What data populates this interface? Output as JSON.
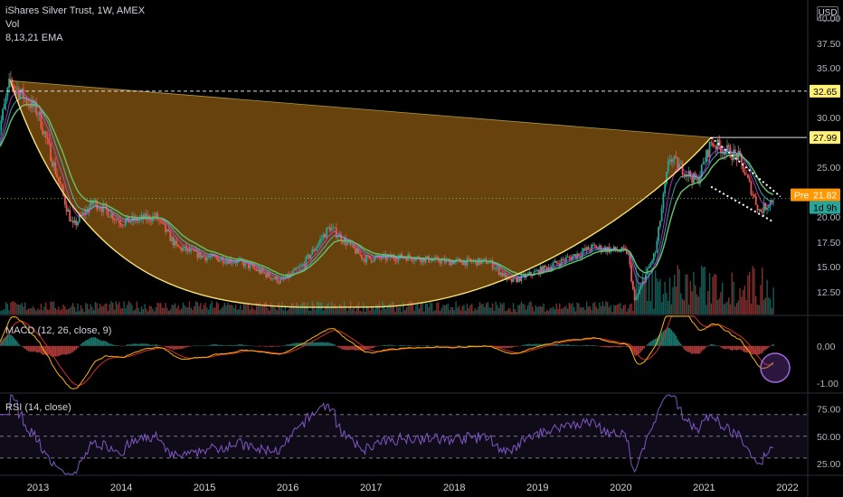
{
  "header": {
    "title": "iShares Silver Trust, 1W, AMEX",
    "vol": "Vol",
    "ema": "8,13,21 EMA",
    "currency": "USD"
  },
  "macd": {
    "label": "MACD (12, 26, close, 9)"
  },
  "rsi": {
    "label": "RSI (14, close)"
  },
  "colors": {
    "background": "#000000",
    "candle_up": "#26a69a",
    "candle_down": "#ef5350",
    "ema8": "#e040fb",
    "ema13": "#4dd0e1",
    "ema21": "#66bb6a",
    "cup_fill": "#7a4e0f",
    "cup_line": "#f5e27a",
    "macd_line": "#ffb300",
    "signal_line": "#d32f2f",
    "rsi_line": "#7e57c2"
  },
  "price_labels": {
    "resistance_1": "32.65",
    "resistance_2": "27.99",
    "pre": "Pre",
    "last": "21.82",
    "countdown": "1d 9h"
  },
  "chart_data": [
    {
      "type": "candlestick",
      "title": "iShares Silver Trust, 1W, AMEX",
      "x_tick_labels": [
        "2013",
        "2014",
        "2015",
        "2016",
        "2017",
        "2018",
        "2019",
        "2020",
        "2021",
        "2022"
      ],
      "y_tick_labels": [
        "12.50",
        "15.00",
        "17.50",
        "20.00",
        "22.50",
        "25.00",
        "30.00",
        "35.00",
        "37.50",
        "40.00"
      ],
      "ylim": [
        10.2,
        41.2
      ],
      "approx_close_path": [
        {
          "x": "2012-07",
          "y": 27.5
        },
        {
          "x": "2012-09",
          "y": 33.7
        },
        {
          "x": "2012-11",
          "y": 32.0
        },
        {
          "x": "2013-01",
          "y": 30.5
        },
        {
          "x": "2013-04",
          "y": 23.5
        },
        {
          "x": "2013-06",
          "y": 19.0
        },
        {
          "x": "2013-09",
          "y": 21.5
        },
        {
          "x": "2014-01",
          "y": 19.5
        },
        {
          "x": "2014-06",
          "y": 20.0
        },
        {
          "x": "2014-09",
          "y": 17.0
        },
        {
          "x": "2015-01",
          "y": 16.0
        },
        {
          "x": "2015-06",
          "y": 15.5
        },
        {
          "x": "2015-12",
          "y": 13.5
        },
        {
          "x": "2016-03",
          "y": 15.0
        },
        {
          "x": "2016-07",
          "y": 19.0
        },
        {
          "x": "2016-12",
          "y": 15.8
        },
        {
          "x": "2017-06",
          "y": 16.0
        },
        {
          "x": "2017-12",
          "y": 15.5
        },
        {
          "x": "2018-06",
          "y": 15.5
        },
        {
          "x": "2018-09",
          "y": 13.5
        },
        {
          "x": "2019-01",
          "y": 14.5
        },
        {
          "x": "2019-09",
          "y": 17.0
        },
        {
          "x": "2020-02",
          "y": 16.5
        },
        {
          "x": "2020-03",
          "y": 11.5
        },
        {
          "x": "2020-06",
          "y": 16.5
        },
        {
          "x": "2020-08",
          "y": 26.0
        },
        {
          "x": "2020-12",
          "y": 23.5
        },
        {
          "x": "2021-02",
          "y": 27.5
        },
        {
          "x": "2021-06",
          "y": 26.0
        },
        {
          "x": "2021-09",
          "y": 20.5
        },
        {
          "x": "2021-11",
          "y": 21.8
        }
      ],
      "annotations": {
        "horizontal_levels": [
          32.65,
          27.99,
          21.82
        ],
        "cup_rim": [
          {
            "x": "2012-09",
            "y": 33.7
          },
          {
            "x": "2021-02",
            "y": 27.99
          }
        ],
        "cup_bottom": {
          "x": "2017-01",
          "y": 11.0
        },
        "falling_channel": [
          {
            "from": {
              "x": "2021-02",
              "y": 27.99
            },
            "to": {
              "x": "2021-12",
              "y": 22.0
            }
          },
          {
            "from": {
              "x": "2021-02",
              "y": 23.0
            },
            "to": {
              "x": "2021-11",
              "y": 19.5
            }
          }
        ]
      }
    },
    {
      "type": "macd",
      "title": "MACD (12, 26, close, 9)",
      "y_tick_labels": [
        "0.00",
        "-1.00"
      ],
      "ylim": [
        -1.25,
        0.8
      ]
    },
    {
      "type": "line",
      "title": "RSI (14, close)",
      "y_tick_labels": [
        "75.00",
        "50.00",
        "25.00"
      ],
      "ylim": [
        15,
        88
      ],
      "levels": [
        70,
        50,
        30
      ]
    }
  ]
}
